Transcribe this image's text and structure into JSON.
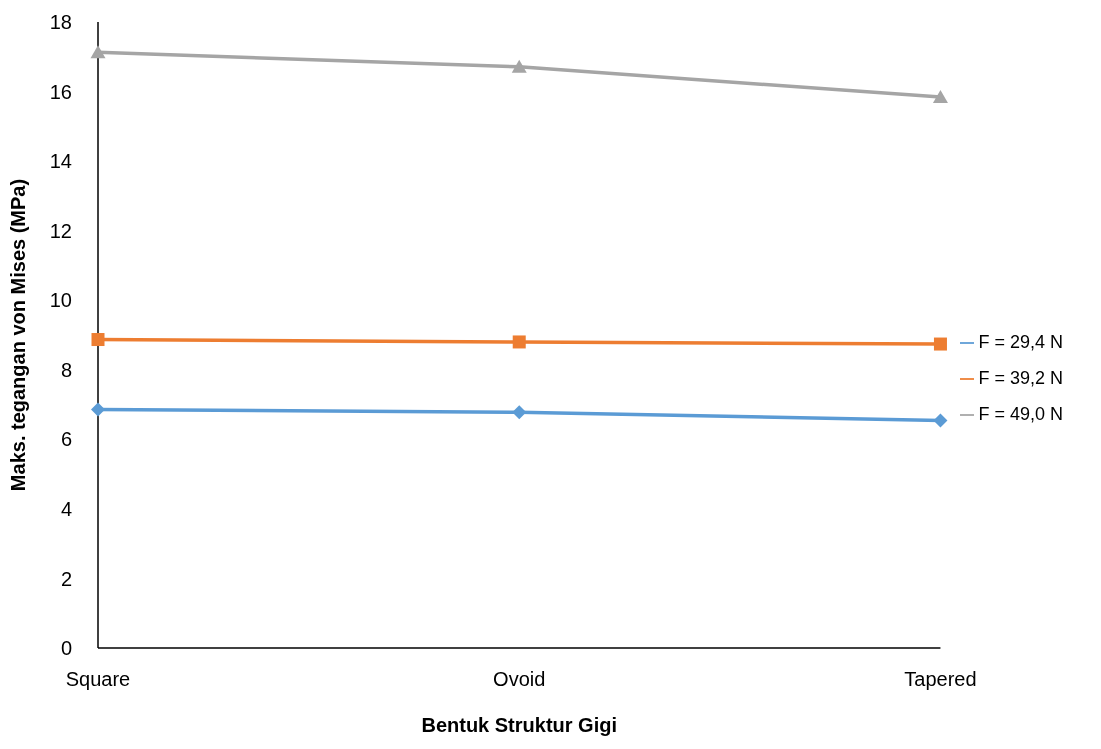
{
  "chart_data": {
    "type": "line",
    "xlabel": "Bentuk Struktur Gigi",
    "ylabel": "Maks. tegangan von Mises (MPa)",
    "categories": [
      "Square",
      "Ovoid",
      "Tapered"
    ],
    "series": [
      {
        "name": "F = 29,4 N",
        "color": "#5b9bd5",
        "marker": "diamond",
        "values": [
          6.86,
          6.78,
          6.54
        ]
      },
      {
        "name": "F = 39,2 N",
        "color": "#ed7d31",
        "marker": "square",
        "values": [
          8.87,
          8.8,
          8.74
        ]
      },
      {
        "name": "F = 49,0 N",
        "color": "#a5a5a5",
        "marker": "triangle",
        "values": [
          17.13,
          16.71,
          15.84
        ]
      }
    ],
    "ylim": [
      0,
      18
    ],
    "yticks": [
      0,
      2,
      4,
      6,
      8,
      10,
      12,
      14,
      16,
      18
    ],
    "grid": false,
    "legend": "right"
  }
}
